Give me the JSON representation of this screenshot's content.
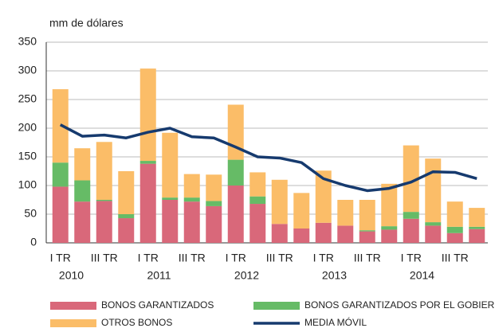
{
  "chart_data": {
    "type": "stacked-bar-line",
    "ylabel": "mm de dólares",
    "categories": [
      "I TR",
      null,
      "III TR",
      null,
      "I TR",
      null,
      "III TR",
      null,
      "I TR",
      null,
      "III TR",
      null,
      "I TR",
      null,
      "III TR",
      null,
      "I TR",
      null,
      "III TR",
      null
    ],
    "years": [
      "2010",
      "2011",
      "2012",
      "2013",
      "2014"
    ],
    "ylim": [
      0,
      350
    ],
    "yticks": [
      0,
      50,
      100,
      150,
      200,
      250,
      300,
      350
    ],
    "grid": true,
    "series": [
      {
        "name": "BONOS GARANTIZADOS",
        "color": "#d9687a",
        "values": [
          98,
          72,
          73,
          43,
          138,
          75,
          72,
          64,
          100,
          68,
          33,
          25,
          35,
          30,
          20,
          23,
          42,
          30,
          17,
          24
        ]
      },
      {
        "name": "BONOS GARANTIZADOS POR EL GOBIERNO",
        "color": "#66bb66",
        "values": [
          42,
          37,
          2,
          7,
          5,
          4,
          7,
          9,
          45,
          13,
          0,
          0,
          0,
          0,
          2,
          6,
          12,
          6,
          11,
          4
        ]
      },
      {
        "name": "OTROS BONOS",
        "color": "#fbbd68",
        "values": [
          128,
          56,
          101,
          75,
          161,
          113,
          41,
          46,
          96,
          42,
          77,
          62,
          91,
          45,
          53,
          74,
          116,
          111,
          44,
          33
        ]
      },
      {
        "name": "MEDIA MÓVIL",
        "color": "#163a6e",
        "kind": "line",
        "values": [
          206,
          186,
          188,
          183,
          193,
          200,
          185,
          183,
          167,
          150,
          148,
          140,
          112,
          100,
          91,
          95,
          106,
          124,
          123,
          112
        ]
      }
    ]
  }
}
